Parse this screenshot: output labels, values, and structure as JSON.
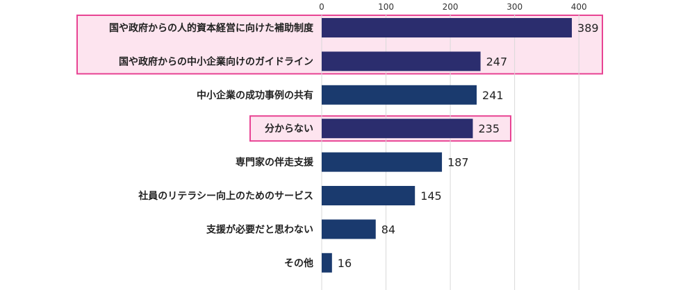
{
  "chart_data": {
    "type": "bar",
    "orientation": "horizontal",
    "categories": [
      "国や政府からの人的資本経営に向けた補助制度",
      "国や政府からの中小企業向けのガイドライン",
      "中小企業の成功事例の共有",
      "分からない",
      "専門家の伴走支援",
      "社員のリテラシー向上のためのサービス",
      "支援が必要だと思わない",
      "その他"
    ],
    "values": [
      389,
      247,
      241,
      235,
      187,
      145,
      84,
      16
    ],
    "ticks": [
      0,
      100,
      200,
      300,
      400
    ],
    "tick_labels": [
      "0",
      "100",
      "200",
      "300",
      "400"
    ],
    "xlim": [
      0,
      430
    ],
    "axis_position": "top",
    "grid": true,
    "legend": "none",
    "highlighted_groups": [
      [
        0,
        1
      ],
      [
        3
      ]
    ],
    "colors": {
      "bar_highlighted": "#2b2d6e",
      "bar_normal": "#1a3a6e",
      "highlight_fill": "#fde4ef",
      "highlight_border": "#e84393",
      "grid": "#d9d9d9",
      "text": "#222222"
    }
  }
}
